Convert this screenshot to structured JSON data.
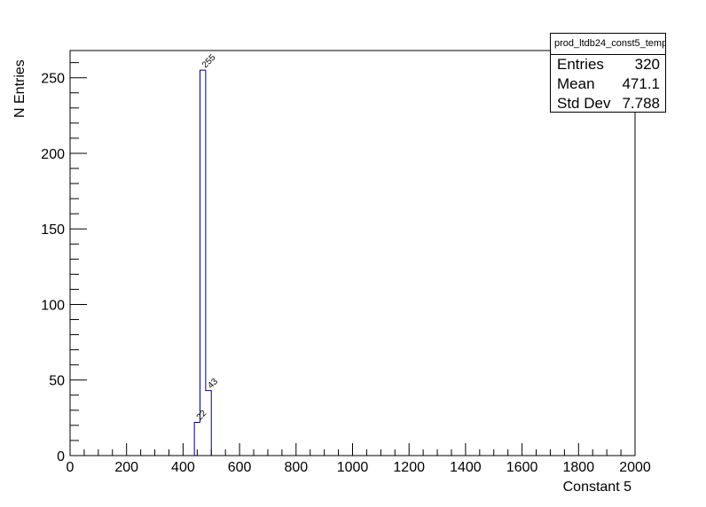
{
  "chart_data": {
    "type": "bar",
    "histogram": true,
    "xlabel": "Constant 5",
    "ylabel": "N Entries",
    "xlim": [
      0,
      2000
    ],
    "ylim": [
      0,
      268
    ],
    "x_ticks": [
      0,
      200,
      400,
      600,
      800,
      1000,
      1200,
      1400,
      1600,
      1800,
      2000
    ],
    "y_ticks": [
      0,
      50,
      100,
      150,
      200,
      250
    ],
    "bins": [
      {
        "x_low": 440,
        "x_high": 460,
        "value": 22,
        "label": "22"
      },
      {
        "x_low": 460,
        "x_high": 480,
        "value": 255,
        "label": "255"
      },
      {
        "x_low": 480,
        "x_high": 500,
        "value": 43,
        "label": "43"
      }
    ],
    "line_color": "#000080",
    "grid": false,
    "legend": "top-right"
  },
  "stats": {
    "title": "prod_ltdb24_const5_temp",
    "rows": [
      {
        "label": "Entries",
        "value": "320"
      },
      {
        "label": "Mean",
        "value": "471.1"
      },
      {
        "label": "Std Dev",
        "value": "7.788"
      }
    ]
  }
}
